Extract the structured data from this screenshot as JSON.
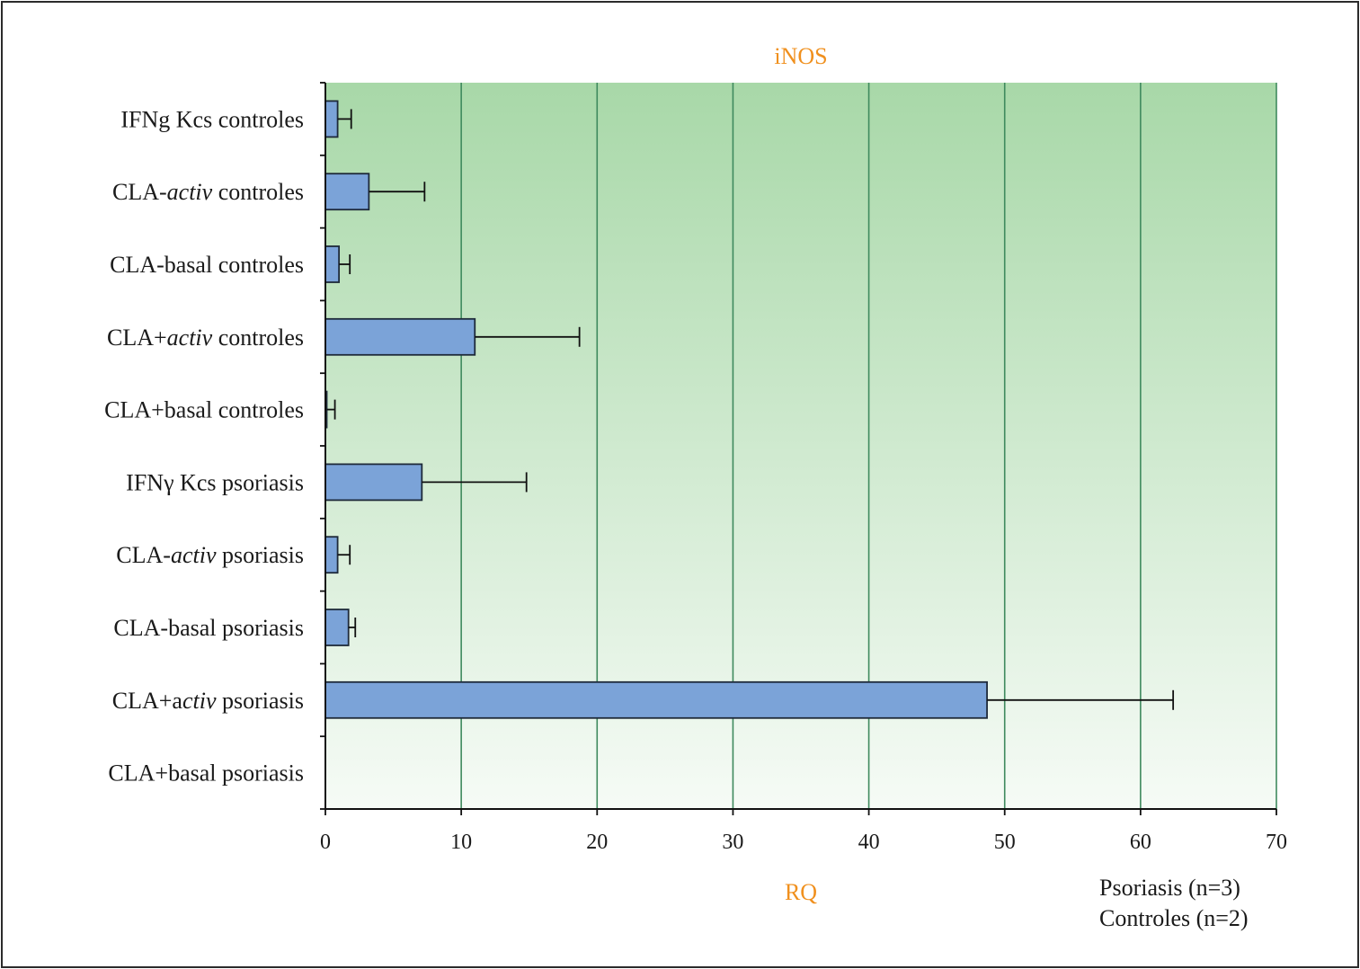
{
  "chart_data": {
    "type": "bar",
    "orientation": "horizontal",
    "title": "iNOS",
    "xlabel": "RQ",
    "ylabel": "",
    "xlim": [
      0,
      70
    ],
    "x_ticks": [
      "0",
      "10",
      "20",
      "30",
      "40",
      "50",
      "60",
      "70"
    ],
    "grid": "vertical",
    "categories": [
      {
        "parts": [
          {
            "text": "IFNg Kcs controles",
            "italic": false
          }
        ]
      },
      {
        "parts": [
          {
            "text": "CLA-",
            "italic": false
          },
          {
            "text": "activ",
            "italic": true
          },
          {
            "text": " controles",
            "italic": false
          }
        ]
      },
      {
        "parts": [
          {
            "text": "CLA-basal controles",
            "italic": false
          }
        ]
      },
      {
        "parts": [
          {
            "text": "CLA+",
            "italic": false
          },
          {
            "text": "activ",
            "italic": true
          },
          {
            "text": " controles",
            "italic": false
          }
        ]
      },
      {
        "parts": [
          {
            "text": "CLA+basal controles",
            "italic": false
          }
        ]
      },
      {
        "parts": [
          {
            "text": "IFNγ Kcs psoriasis",
            "italic": false
          }
        ]
      },
      {
        "parts": [
          {
            "text": "CLA-",
            "italic": false
          },
          {
            "text": "activ",
            "italic": true
          },
          {
            "text": " psoriasis",
            "italic": false
          }
        ]
      },
      {
        "parts": [
          {
            "text": "CLA-basal psoriasis",
            "italic": false
          }
        ]
      },
      {
        "parts": [
          {
            "text": "CLA+a",
            "italic": false
          },
          {
            "text": "ctiv",
            "italic": true
          },
          {
            "text": " psoriasis",
            "italic": false
          }
        ]
      },
      {
        "parts": [
          {
            "text": "CLA+basal psoriasis",
            "italic": false
          }
        ]
      }
    ],
    "values": [
      0.9,
      3.2,
      1.0,
      11.0,
      0.1,
      7.1,
      0.9,
      1.7,
      48.7,
      0.0
    ],
    "error_upper": [
      1.9,
      7.3,
      1.8,
      18.7,
      0.7,
      14.8,
      1.8,
      2.2,
      62.4,
      null
    ],
    "colors": {
      "bar": "#7ba3d8",
      "bar_edge": "#1e2a3a",
      "grid": "#3f8a5e",
      "plot_bg_top": "#a8d8a8",
      "plot_bg_bottom": "#f6fbf6",
      "title": "#f0901e",
      "axis_label": "#f0901e"
    },
    "notes": [
      "Psoriasis (n=3)",
      "Controles (n=2)"
    ]
  }
}
